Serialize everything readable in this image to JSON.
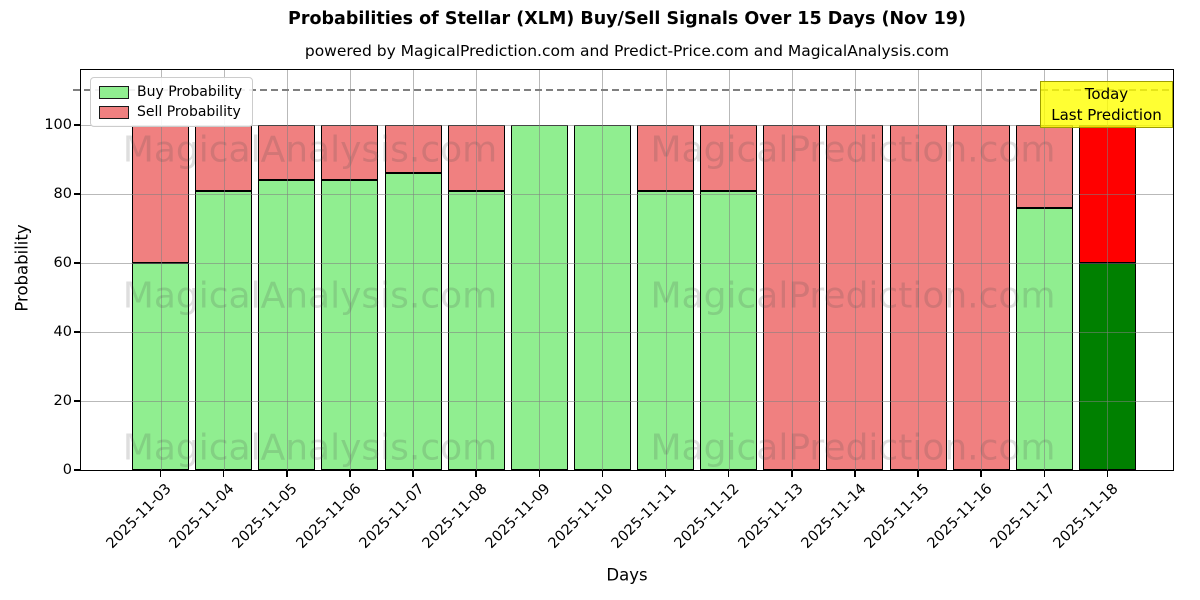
{
  "page_title": "Probabilities of Stellar (XLM) Buy/Sell Signals Over 15 Days (Nov 19)",
  "subtitle": "powered by MagicalPrediction.com and Predict-Price.com and MagicalAnalysis.com",
  "annotation": {
    "line1": "Today",
    "line2": "Last Prediction"
  },
  "watermarks": {
    "left": "MagicalAnalysis.com",
    "right": "MagicalPrediction.com"
  },
  "chart_data": {
    "type": "bar",
    "stacked": true,
    "title": "Probabilities of Stellar (XLM) Buy/Sell Signals Over 15 Days (Nov 19)",
    "xlabel": "Days",
    "ylabel": "Probability",
    "categories": [
      "2025-11-03",
      "2025-11-04",
      "2025-11-05",
      "2025-11-06",
      "2025-11-07",
      "2025-11-08",
      "2025-11-09",
      "2025-11-10",
      "2025-11-11",
      "2025-11-12",
      "2025-11-13",
      "2025-11-14",
      "2025-11-15",
      "2025-11-16",
      "2025-11-17",
      "2025-11-18"
    ],
    "series": [
      {
        "name": "Buy Probability",
        "color": "#90ee90",
        "values": [
          60,
          81,
          84,
          84,
          86,
          81,
          100,
          100,
          81,
          81,
          0,
          0,
          0,
          0,
          76,
          60
        ]
      },
      {
        "name": "Sell Probability",
        "color": "#f08080",
        "values": [
          40,
          19,
          16,
          16,
          14,
          19,
          0,
          0,
          19,
          19,
          100,
          100,
          100,
          100,
          24,
          40
        ]
      }
    ],
    "today_index": 15,
    "today_colors": {
      "buy": "#008000",
      "sell": "#ff0000"
    },
    "yticks": [
      0,
      20,
      40,
      60,
      80,
      100
    ],
    "ylim": [
      0,
      116
    ],
    "dashed_line_y": 110,
    "grid": true,
    "legend_position": "upper left"
  }
}
